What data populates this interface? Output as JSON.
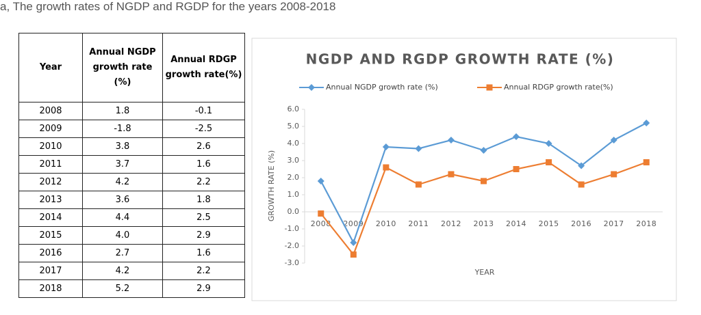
{
  "caption": "a, The growth rates of NGDP and RGDP for the years 2008-2018",
  "table": {
    "header": [
      "Year",
      "Annual NGDP growth rate (%)",
      "Annual RDGP growth rate(%)"
    ],
    "rows": [
      [
        "2008",
        "1.8",
        "-0.1"
      ],
      [
        "2009",
        "-1.8",
        "-2.5"
      ],
      [
        "2010",
        "3.8",
        "2.6"
      ],
      [
        "2011",
        "3.7",
        "1.6"
      ],
      [
        "2012",
        "4.2",
        "2.2"
      ],
      [
        "2013",
        "3.6",
        "1.8"
      ],
      [
        "2014",
        "4.4",
        "2.5"
      ],
      [
        "2015",
        "4.0",
        "2.9"
      ],
      [
        "2016",
        "2.7",
        "1.6"
      ],
      [
        "2017",
        "4.2",
        "2.2"
      ],
      [
        "2018",
        "5.2",
        "2.9"
      ]
    ]
  },
  "chart_data": {
    "type": "line",
    "title": "NGDP AND RGDP GROWTH RATE (%)",
    "categories": [
      "2008",
      "2009",
      "2010",
      "2011",
      "2012",
      "2013",
      "2014",
      "2015",
      "2016",
      "2017",
      "2018"
    ],
    "series": [
      {
        "name": "Annual NGDP growth rate (%)",
        "color": "#5b9bd5",
        "marker": "diamond",
        "values": [
          1.8,
          -1.8,
          3.8,
          3.7,
          4.2,
          3.6,
          4.4,
          4.0,
          2.7,
          4.2,
          5.2
        ]
      },
      {
        "name": "Annual RDGP growth rate(%)",
        "color": "#ed7d31",
        "marker": "square",
        "values": [
          -0.1,
          -2.5,
          2.6,
          1.6,
          2.2,
          1.8,
          2.5,
          2.9,
          1.6,
          2.2,
          2.9
        ]
      }
    ],
    "ylim": [
      -3,
      6
    ],
    "yticks": [
      {
        "value": -3,
        "label": "-3.0"
      },
      {
        "value": -2,
        "label": "-2.0"
      },
      {
        "value": -1,
        "label": "-1.0"
      },
      {
        "value": 0,
        "label": "0.0"
      },
      {
        "value": 1,
        "label": "1.0"
      },
      {
        "value": 2,
        "label": "2.0"
      },
      {
        "value": 3,
        "label": "3.0"
      },
      {
        "value": 4,
        "label": "4.0"
      },
      {
        "value": 5,
        "label": "5.0"
      },
      {
        "value": 6,
        "label": "6.0"
      }
    ],
    "ylabel": "GROWTH RATE (%)",
    "xlabel": "YEAR",
    "legend": "top"
  }
}
